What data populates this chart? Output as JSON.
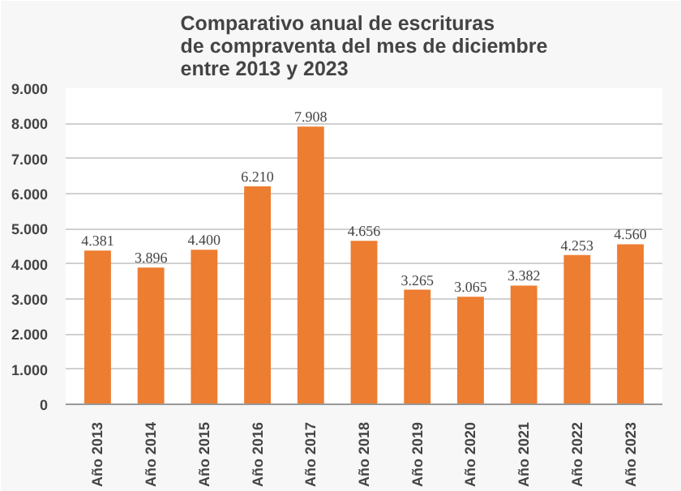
{
  "chart_data": {
    "type": "bar",
    "title": "Comparativo anual de escrituras\nde compraventa del mes de diciembre\nentre 2013 y 2023",
    "categories": [
      "Año 2013",
      "Año 2014",
      "Año 2015",
      "Año 2016",
      "Año 2017",
      "Año 2018",
      "Año 2019",
      "Año 2020",
      "Año 2021",
      "Año 2022",
      "Año 2023"
    ],
    "values": [
      4381,
      3896,
      4400,
      6210,
      7908,
      4656,
      3265,
      3065,
      3382,
      4253,
      4560
    ],
    "value_labels": [
      "4.381",
      "3.896",
      "4.400",
      "6.210",
      "7.908",
      "4.656",
      "3.265",
      "3.065",
      "3.382",
      "4.253",
      "4.560"
    ],
    "color": "#ed7d31",
    "ylim": [
      0,
      9000
    ],
    "yticks": [
      {
        "value": 0,
        "label": "0"
      },
      {
        "value": 1000,
        "label": "1.000"
      },
      {
        "value": 2000,
        "label": "2.000"
      },
      {
        "value": 3000,
        "label": "3.000"
      },
      {
        "value": 4000,
        "label": "4.000"
      },
      {
        "value": 5000,
        "label": "5.000"
      },
      {
        "value": 6000,
        "label": "6.000"
      },
      {
        "value": 7000,
        "label": "7.000"
      },
      {
        "value": 8000,
        "label": "8.000"
      },
      {
        "value": 9000,
        "label": "9.000"
      }
    ],
    "grid": "y"
  }
}
